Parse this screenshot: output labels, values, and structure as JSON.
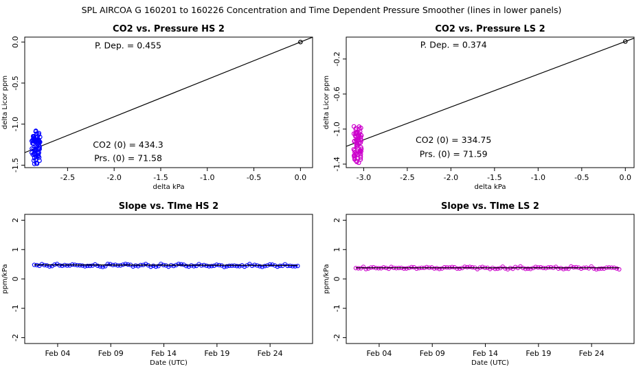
{
  "suptitle": "SPL    AIRCOA G    160201 to 160226    Concentration and Time Dependent Pressure Smoother (lines in lower panels)",
  "colors": {
    "hs": "#0000ff",
    "ls": "#cc00cc",
    "line": "#000000"
  },
  "chart_data": [
    {
      "id": "p1",
      "type": "scatter",
      "title": "CO2 vs. Pressure HS 2",
      "xlabel": "delta kPa",
      "ylabel": "delta Licor ppm",
      "xlim": [
        -2.96,
        0.13
      ],
      "ylim": [
        -1.53,
        0.06
      ],
      "xticks": [
        -2.5,
        -2.0,
        -1.5,
        -1.0,
        -0.5,
        0.0
      ],
      "xtick_labels": [
        "-2.5",
        "-2.0",
        "-1.5",
        "-1.0",
        "-0.5",
        "0.0"
      ],
      "yticks": [
        0.0,
        -0.5,
        -1.0,
        -1.5
      ],
      "ytick_labels": [
        "0.0",
        "-0.5",
        "-1.0",
        "-1.5"
      ],
      "color_key": "hs",
      "cluster": {
        "x": -2.84,
        "x_spread": 0.045,
        "y_min": -1.49,
        "y_max": -1.08,
        "n": 72
      },
      "origin_point": [
        0.0,
        0.0
      ],
      "fit": {
        "slope": 0.455,
        "intercept": 0.0
      },
      "annotations": [
        {
          "text": "P. Dep. =  0.455",
          "x": -1.85,
          "y": -0.05
        },
        {
          "text": "CO2 (0) =  434.3",
          "x": -1.85,
          "y": -1.26
        },
        {
          "text": "Prs. (0) =  71.58",
          "x": -1.85,
          "y": -1.42
        }
      ]
    },
    {
      "id": "p2",
      "type": "scatter",
      "title": "CO2 vs. Pressure LS 2",
      "xlabel": "delta kPa",
      "ylabel": "delta Licor ppm",
      "xlim": [
        -3.2,
        0.1
      ],
      "ylim": [
        -1.44,
        0.05
      ],
      "xticks": [
        -3.0,
        -2.5,
        -2.0,
        -1.5,
        -1.0,
        -0.5,
        0.0
      ],
      "xtick_labels": [
        "-3.0",
        "-2.5",
        "-2.0",
        "-1.5",
        "-1.0",
        "-0.5",
        "0.0"
      ],
      "yticks": [
        -0.2,
        -0.6,
        -1.0,
        -1.4
      ],
      "ytick_labels": [
        "-0.2",
        "-0.6",
        "-1.0",
        "-1.4"
      ],
      "color_key": "ls",
      "cluster": {
        "x": -3.07,
        "x_spread": 0.045,
        "y_min": -1.4,
        "y_max": -0.96,
        "n": 72
      },
      "origin_point": [
        0.0,
        0.0
      ],
      "fit": {
        "slope": 0.374,
        "intercept": 0.0
      },
      "annotations": [
        {
          "text": "P. Dep. =  0.374",
          "x": -1.97,
          "y": -0.045
        },
        {
          "text": "CO2 (0) =  334.75",
          "x": -1.97,
          "y": -1.13
        },
        {
          "text": "Prs. (0) =  71.59",
          "x": -1.97,
          "y": -1.29
        }
      ]
    },
    {
      "id": "p3",
      "type": "line",
      "title": "Slope vs. TIme HS 2",
      "xlabel": "Date (UTC)",
      "ylabel": "ppm/kPa",
      "xlim": [
        -0.1,
        27.0
      ],
      "ylim": [
        -2.2,
        2.2
      ],
      "xticks": [
        3,
        8,
        13,
        18,
        23
      ],
      "xtick_labels": [
        "Feb 04",
        "Feb 09",
        "Feb 14",
        "Feb 19",
        "Feb 24"
      ],
      "yticks": [
        2,
        1,
        0,
        -1,
        -2
      ],
      "ytick_labels": [
        "2",
        "1",
        "0",
        "-1",
        "-2"
      ],
      "color_key": "hs",
      "t_start": 0.8,
      "t_end": 25.6,
      "n": 105,
      "mean": 0.46,
      "amp": 0.035,
      "smoother": {
        "start": 0.48,
        "end": 0.46
      }
    },
    {
      "id": "p4",
      "type": "line",
      "title": "Slope vs. TIme LS 2",
      "xlabel": "Date (UTC)",
      "ylabel": "ppm/kPa",
      "xlim": [
        -0.1,
        27.0
      ],
      "ylim": [
        -2.2,
        2.2
      ],
      "xticks": [
        3,
        8,
        13,
        18,
        23
      ],
      "xtick_labels": [
        "Feb 04",
        "Feb 09",
        "Feb 14",
        "Feb 19",
        "Feb 24"
      ],
      "yticks": [
        2,
        1,
        0,
        -1,
        -2
      ],
      "ytick_labels": [
        "2",
        "1",
        "0",
        "-1",
        "-2"
      ],
      "color_key": "ls",
      "t_start": 0.8,
      "t_end": 25.6,
      "n": 105,
      "mean": 0.375,
      "amp": 0.035,
      "smoother": {
        "start": 0.38,
        "end": 0.38
      }
    }
  ]
}
